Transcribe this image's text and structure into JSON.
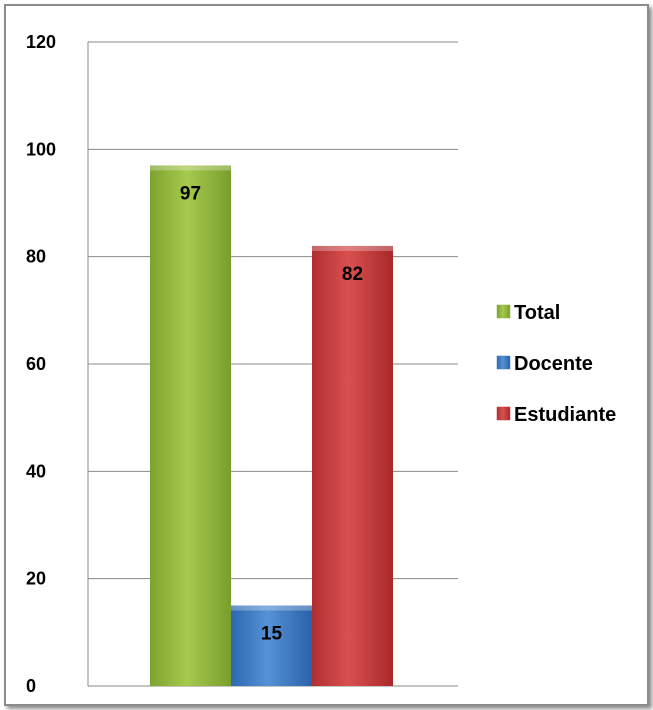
{
  "chart_data": {
    "type": "bar",
    "title": "",
    "xlabel": "",
    "ylabel": "",
    "ylim": [
      0,
      120
    ],
    "yticks": [
      0,
      20,
      40,
      60,
      80,
      100,
      120
    ],
    "grid": true,
    "legend_position": "right",
    "series": [
      {
        "name": "Total",
        "value": 97,
        "label": "97",
        "color": "#8db33a"
      },
      {
        "name": "Docente",
        "value": 15,
        "label": "15",
        "color": "#3a78c0"
      },
      {
        "name": "Estudiante",
        "value": 82,
        "label": "82",
        "color": "#c0393b"
      }
    ]
  }
}
